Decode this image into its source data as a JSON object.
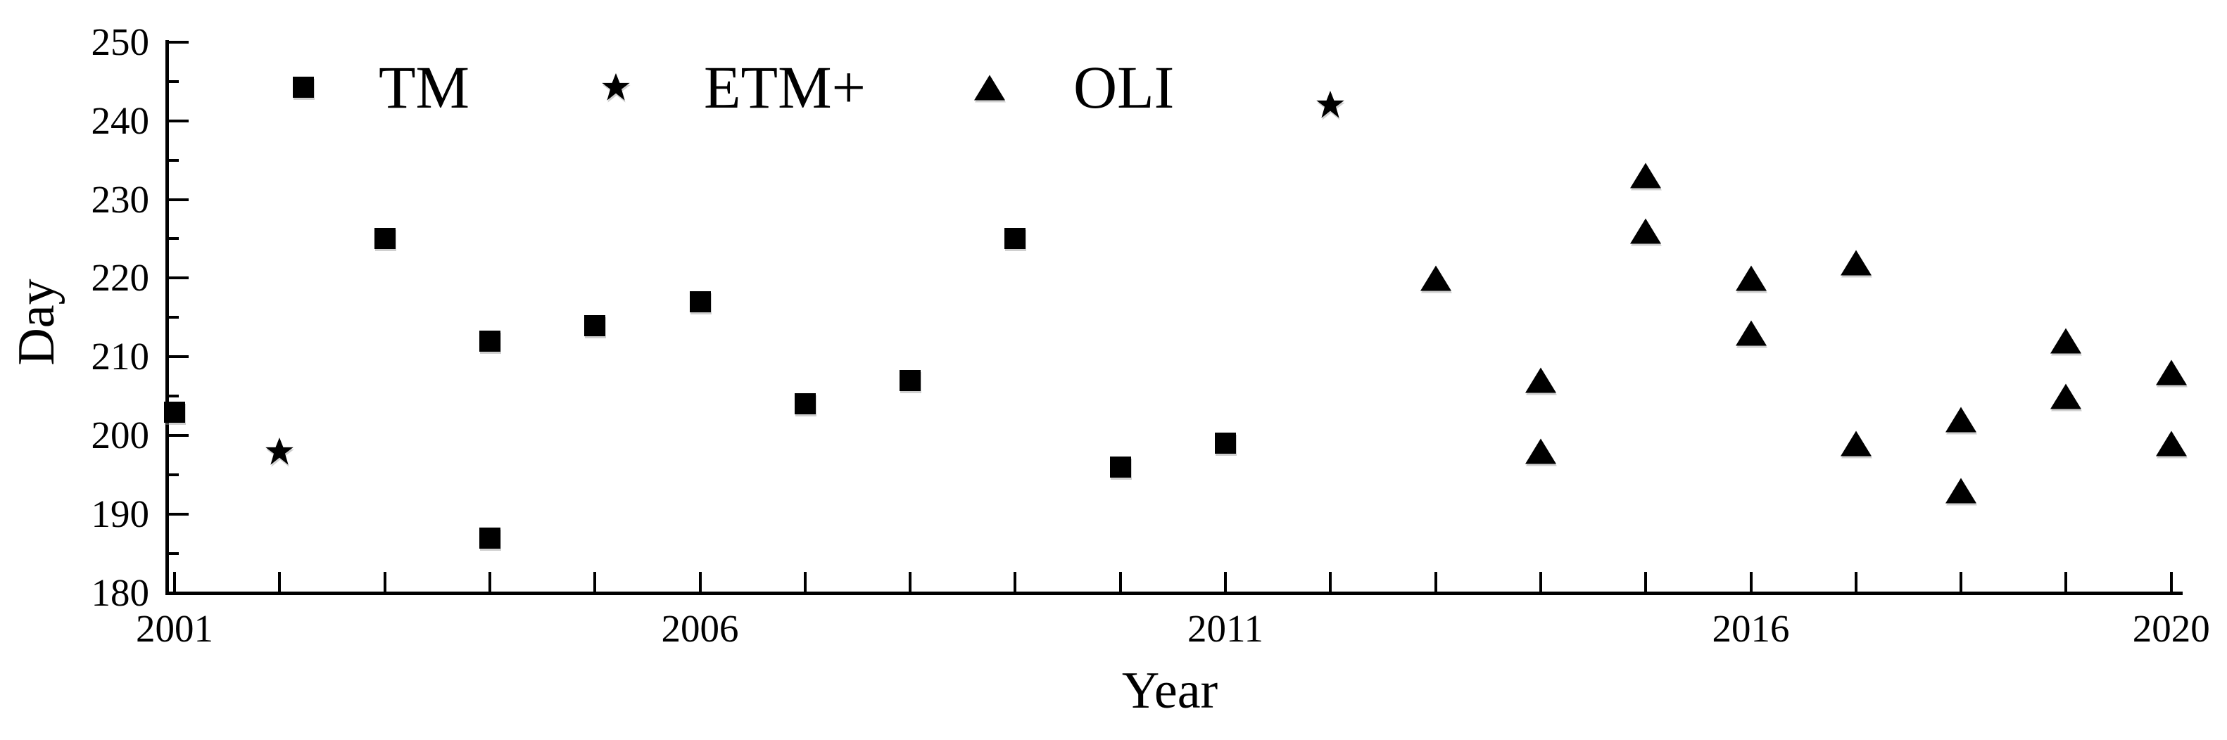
{
  "figure": {
    "background": "#ffffff",
    "marker_color": "#000000",
    "axis_color": "#000000"
  },
  "chart_data": {
    "type": "scatter",
    "title": "",
    "xlabel": "Year",
    "ylabel": "Day",
    "xlim": [
      2001,
      2020
    ],
    "ylim": [
      180,
      250
    ],
    "grid": false,
    "legend_position": "top-inside-horizontal",
    "x_major_tick_labels": [
      "2001",
      "2006",
      "2011",
      "2016",
      "2020"
    ],
    "x_major_tick_years": [
      2001,
      2006,
      2011,
      2016,
      2020
    ],
    "x_minor_tick_years": [
      2001,
      2002,
      2003,
      2004,
      2005,
      2006,
      2007,
      2008,
      2009,
      2010,
      2011,
      2012,
      2013,
      2014,
      2015,
      2016,
      2017,
      2018,
      2019,
      2020
    ],
    "y_major_ticks": [
      250,
      240,
      230,
      220,
      210,
      200,
      190,
      180
    ],
    "y_minor_ticks": [
      245,
      235,
      225,
      215,
      205,
      195,
      185
    ],
    "series": [
      {
        "name": "TM",
        "marker": "square",
        "points": [
          {
            "year": 2001,
            "day": 203
          },
          {
            "year": 2003,
            "day": 225
          },
          {
            "year": 2004,
            "day": 212
          },
          {
            "year": 2004,
            "day": 187
          },
          {
            "year": 2005,
            "day": 214
          },
          {
            "year": 2006,
            "day": 217
          },
          {
            "year": 2007,
            "day": 204
          },
          {
            "year": 2008,
            "day": 207
          },
          {
            "year": 2009,
            "day": 225
          },
          {
            "year": 2010,
            "day": 196
          },
          {
            "year": 2011,
            "day": 199
          }
        ]
      },
      {
        "name": "ETM+",
        "marker": "star",
        "points": [
          {
            "year": 2002,
            "day": 198
          },
          {
            "year": 2012,
            "day": 242
          }
        ]
      },
      {
        "name": "OLI",
        "marker": "triangle",
        "points": [
          {
            "year": 2013,
            "day": 220
          },
          {
            "year": 2014,
            "day": 207
          },
          {
            "year": 2014,
            "day": 198
          },
          {
            "year": 2015,
            "day": 233
          },
          {
            "year": 2015,
            "day": 226
          },
          {
            "year": 2016,
            "day": 220
          },
          {
            "year": 2016,
            "day": 213
          },
          {
            "year": 2017,
            "day": 222
          },
          {
            "year": 2017,
            "day": 199
          },
          {
            "year": 2018,
            "day": 202
          },
          {
            "year": 2018,
            "day": 193
          },
          {
            "year": 2019,
            "day": 212
          },
          {
            "year": 2019,
            "day": 205
          },
          {
            "year": 2020,
            "day": 208
          },
          {
            "year": 2020,
            "day": 199
          }
        ]
      }
    ]
  }
}
